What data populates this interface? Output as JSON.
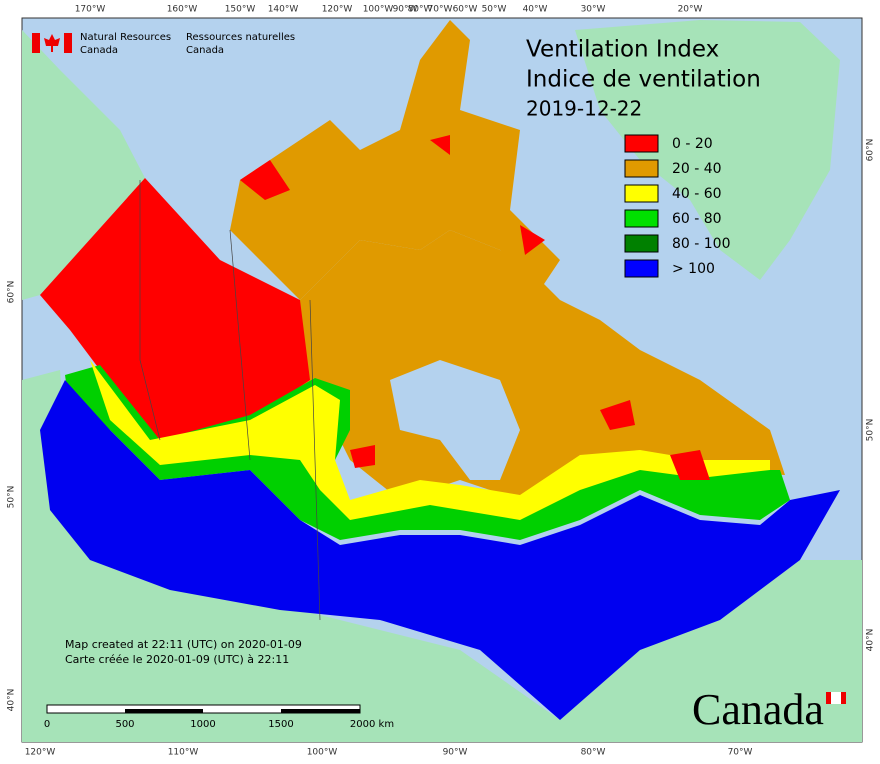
{
  "header": {
    "agency_en": "Natural Resources",
    "agency_en_2": "Canada",
    "agency_fr": "Ressources naturelles",
    "agency_fr_2": "Canada"
  },
  "title": {
    "en": "Ventilation Index",
    "fr": "Indice de ventilation",
    "date": "2019-12-22"
  },
  "legend": [
    {
      "label": "0 - 20",
      "color": "#ff0000"
    },
    {
      "label": "20 - 40",
      "color": "#e09a00"
    },
    {
      "label": "40 - 60",
      "color": "#ffff00"
    },
    {
      "label": "60 - 80",
      "color": "#00e000"
    },
    {
      "label": "80 - 100",
      "color": "#008000"
    },
    {
      "label": "> 100",
      "color": "#0000ff"
    }
  ],
  "top_longitudes": [
    "170°W",
    "160°W",
    "150°W",
    "140°W",
    "120°W",
    "100°W",
    "90°W",
    "80°W",
    "70°W",
    "60°W",
    "50°W",
    "40°W",
    "30°W",
    "20°W"
  ],
  "bottom_longitudes": [
    "120°W",
    "110°W",
    "100°W",
    "90°W",
    "80°W",
    "70°W"
  ],
  "left_latitudes": [
    "60°N",
    "50°N",
    "40°N"
  ],
  "right_latitudes": [
    "60°N",
    "50°N",
    "40°N"
  ],
  "notes": [
    "Map created at 22:11 (UTC) on 2020-01-09",
    "Carte créée le 2020-01-09 (UTC) à 22:11"
  ],
  "scale_bar": [
    "0",
    "500",
    "1000",
    "1500",
    "2000 km"
  ],
  "wordmark": "Canada"
}
